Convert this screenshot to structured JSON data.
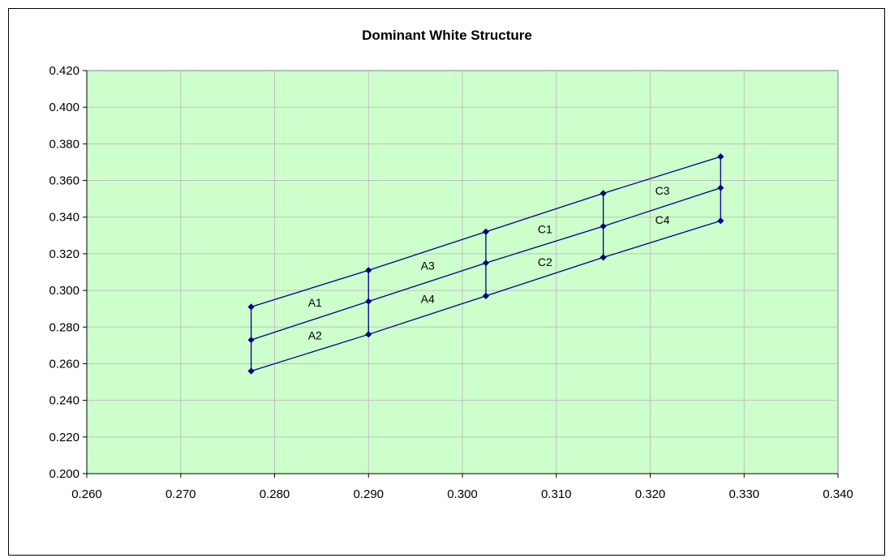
{
  "chart_data": {
    "type": "line",
    "title": "Dominant White Structure",
    "xlabel": "",
    "ylabel": "",
    "xlim": [
      0.26,
      0.34
    ],
    "ylim": [
      0.2,
      0.42
    ],
    "x_ticks": [
      "0.260",
      "0.270",
      "0.280",
      "0.290",
      "0.300",
      "0.310",
      "0.320",
      "0.330",
      "0.340"
    ],
    "y_ticks": [
      "0.200",
      "0.220",
      "0.240",
      "0.260",
      "0.280",
      "0.300",
      "0.320",
      "0.340",
      "0.360",
      "0.380",
      "0.400",
      "0.420"
    ],
    "grid": true,
    "colors": {
      "plot_bg": "#ccffcc",
      "series": "#000080",
      "grid": "#c0c0c0"
    },
    "series": [
      {
        "values": [
          [
            0.2775,
            0.291
          ],
          [
            0.29,
            0.311
          ],
          [
            0.3025,
            0.332
          ],
          [
            0.315,
            0.353
          ],
          [
            0.3275,
            0.373
          ]
        ]
      },
      {
        "values": [
          [
            0.2775,
            0.273
          ],
          [
            0.29,
            0.294
          ],
          [
            0.3025,
            0.315
          ],
          [
            0.315,
            0.335
          ],
          [
            0.3275,
            0.356
          ]
        ]
      },
      {
        "values": [
          [
            0.2775,
            0.256
          ],
          [
            0.29,
            0.276
          ],
          [
            0.3025,
            0.297
          ],
          [
            0.315,
            0.318
          ],
          [
            0.3275,
            0.338
          ]
        ]
      },
      {
        "values": [
          [
            0.2775,
            0.256
          ],
          [
            0.2775,
            0.291
          ]
        ]
      },
      {
        "values": [
          [
            0.29,
            0.276
          ],
          [
            0.29,
            0.311
          ]
        ]
      },
      {
        "values": [
          [
            0.3025,
            0.297
          ],
          [
            0.3025,
            0.332
          ]
        ]
      },
      {
        "values": [
          [
            0.315,
            0.318
          ],
          [
            0.315,
            0.353
          ]
        ]
      },
      {
        "values": [
          [
            0.3275,
            0.338
          ],
          [
            0.3275,
            0.373
          ]
        ]
      }
    ],
    "annotations": [
      {
        "text": "A1",
        "x": 0.2843,
        "y": 0.2935
      },
      {
        "text": "A2",
        "x": 0.2843,
        "y": 0.2755
      },
      {
        "text": "A3",
        "x": 0.2963,
        "y": 0.3135
      },
      {
        "text": "A4",
        "x": 0.2963,
        "y": 0.2955
      },
      {
        "text": "C1",
        "x": 0.3088,
        "y": 0.3335
      },
      {
        "text": "C2",
        "x": 0.3088,
        "y": 0.3155
      },
      {
        "text": "C3",
        "x": 0.3213,
        "y": 0.3545
      },
      {
        "text": "C4",
        "x": 0.3213,
        "y": 0.3385
      }
    ]
  }
}
